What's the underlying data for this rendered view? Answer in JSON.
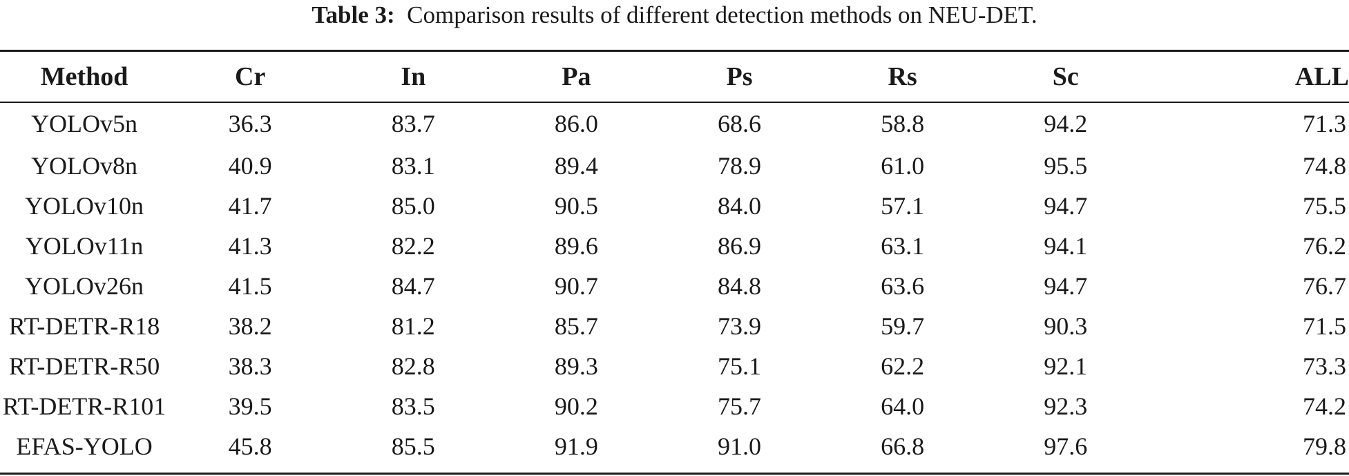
{
  "caption": {
    "label": "Table 3:",
    "text": "Comparison results of different detection methods on NEU-DET."
  },
  "columns": [
    "Method",
    "Cr",
    "In",
    "Pa",
    "Ps",
    "Rs",
    "Sc",
    "ALL"
  ],
  "rows": [
    {
      "method": "YOLOv5n",
      "values": [
        "36.3",
        "83.7",
        "86.0",
        "68.6",
        "58.8",
        "94.2",
        "71.3"
      ]
    },
    {
      "method": "YOLOv8n",
      "values": [
        "40.9",
        "83.1",
        "89.4",
        "78.9",
        "61.0",
        "95.5",
        "74.8"
      ]
    },
    {
      "method": "YOLOv10n",
      "values": [
        "41.7",
        "85.0",
        "90.5",
        "84.0",
        "57.1",
        "94.7",
        "75.5"
      ]
    },
    {
      "method": "YOLOv11n",
      "values": [
        "41.3",
        "82.2",
        "89.6",
        "86.9",
        "63.1",
        "94.1",
        "76.2"
      ]
    },
    {
      "method": "YOLOv26n",
      "values": [
        "41.5",
        "84.7",
        "90.7",
        "84.8",
        "63.6",
        "94.7",
        "76.7"
      ]
    },
    {
      "method": "RT-DETR-R18",
      "values": [
        "38.2",
        "81.2",
        "85.7",
        "73.9",
        "59.7",
        "90.3",
        "71.5"
      ]
    },
    {
      "method": "RT-DETR-R50",
      "values": [
        "38.3",
        "82.8",
        "89.3",
        "75.1",
        "62.2",
        "92.1",
        "73.3"
      ]
    },
    {
      "method": "RT-DETR-R101",
      "values": [
        "39.5",
        "83.5",
        "90.2",
        "75.7",
        "64.0",
        "92.3",
        "74.2"
      ]
    },
    {
      "method": "EFAS-YOLO",
      "values": [
        "45.8",
        "85.5",
        "91.9",
        "91.0",
        "66.8",
        "97.6",
        "79.8"
      ]
    }
  ]
}
